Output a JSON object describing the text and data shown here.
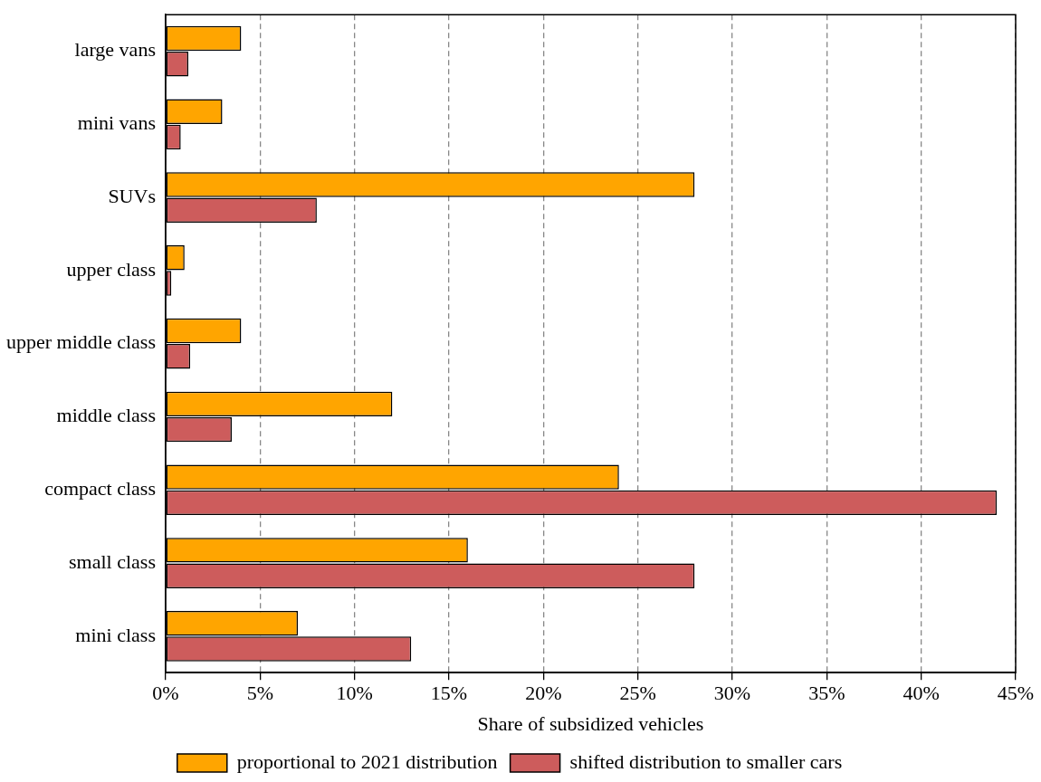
{
  "chart_data": {
    "type": "bar",
    "orientation": "horizontal",
    "xlabel": "Share of subsidized vehicles",
    "categories": [
      "large vans",
      "mini vans",
      "SUVs",
      "upper class",
      "upper middle class",
      "middle class",
      "compact class",
      "small class",
      "mini class"
    ],
    "series": [
      {
        "name": "proportional to 2021 distribution",
        "color": "#ffa500",
        "values": [
          4.0,
          3.0,
          28.0,
          1.0,
          4.0,
          12.0,
          24.0,
          16.0,
          7.0
        ]
      },
      {
        "name": "shifted distribution to smaller cars",
        "color": "#cd5c5c",
        "values": [
          1.2,
          0.8,
          8.0,
          0.3,
          1.3,
          3.5,
          44.0,
          28.0,
          13.0
        ]
      }
    ],
    "xlim": [
      0,
      45
    ],
    "xticks": [
      {
        "value": 0,
        "label": "0%"
      },
      {
        "value": 5,
        "label": "5%"
      },
      {
        "value": 10,
        "label": "10%"
      },
      {
        "value": 15,
        "label": "15%"
      },
      {
        "value": 20,
        "label": "20%"
      },
      {
        "value": 25,
        "label": "25%"
      },
      {
        "value": 30,
        "label": "30%"
      },
      {
        "value": 35,
        "label": "35%"
      },
      {
        "value": 40,
        "label": "40%"
      },
      {
        "value": 45,
        "label": "45%"
      }
    ],
    "grid": "x",
    "legend": "bottom"
  }
}
